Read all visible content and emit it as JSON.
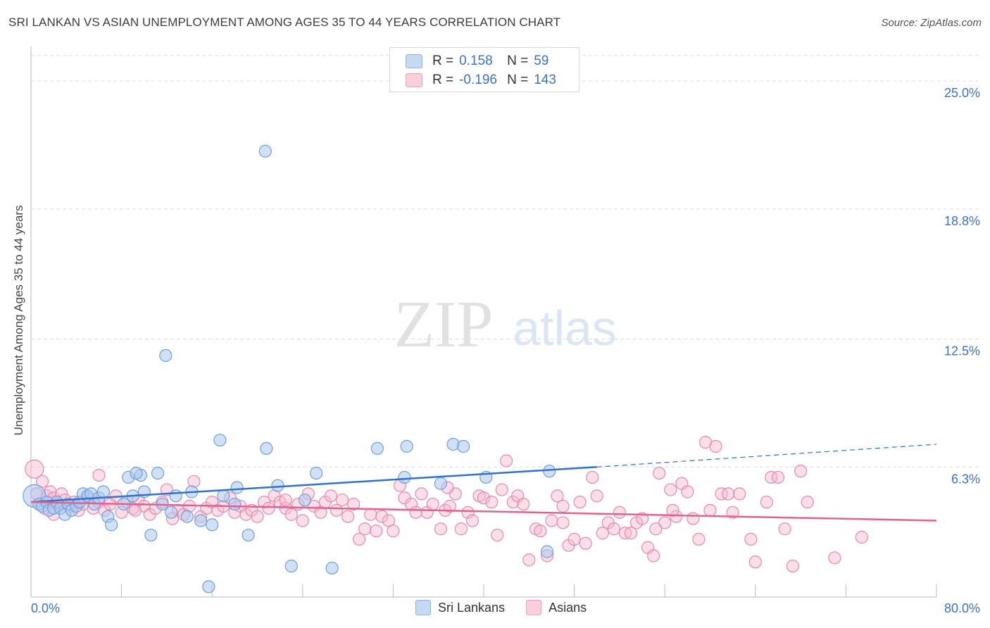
{
  "header": {
    "title": "SRI LANKAN VS ASIAN UNEMPLOYMENT AMONG AGES 35 TO 44 YEARS CORRELATION CHART",
    "source": "Source: ZipAtlas.com"
  },
  "watermark": {
    "zip": "ZIP",
    "atlas": "atlas"
  },
  "legend": {
    "rows": [
      {
        "r_label": "R =",
        "r_value": "0.158",
        "n_label": "N =",
        "n_value": "59"
      },
      {
        "r_label": "R =",
        "r_value": "-0.196",
        "n_label": "N =",
        "n_value": "143"
      }
    ]
  },
  "bottom_legend": {
    "items": [
      "Sri Lankans",
      "Asians"
    ]
  },
  "colors": {
    "blue_fill": "#a9c8f0",
    "blue_stroke": "#6f9fdc",
    "blue_line": "#2f72d0",
    "pink_fill": "#f6b8cb",
    "pink_stroke": "#e889a8",
    "pink_line": "#e2628f",
    "tick_label": "#3a73c8",
    "grid": "#dcdcdc"
  },
  "chart_data": {
    "type": "scatter",
    "title": "SRI LANKAN VS ASIAN UNEMPLOYMENT AMONG AGES 35 TO 44 YEARS CORRELATION CHART",
    "xlabel": "",
    "ylabel": "Unemployment Among Ages 35 to 44 years",
    "xlim": [
      0,
      80
    ],
    "ylim": [
      0,
      26.4
    ],
    "x_tick_labels": [
      "0.0%",
      "80.0%"
    ],
    "y_ticks": [
      6.3,
      12.5,
      18.8,
      25.0
    ],
    "y_tick_labels": [
      "6.3%",
      "12.5%",
      "18.8%",
      "25.0%"
    ],
    "grid": true,
    "legend_position": "top-center",
    "series": [
      {
        "name": "Sri Lankans",
        "r": 0.158,
        "n": 59,
        "trend": {
          "x": [
            0,
            50
          ],
          "y": [
            4.6,
            6.3
          ],
          "dashed_to": [
            80,
            7.4
          ]
        },
        "points": [
          [
            0.3,
            4.9
          ],
          [
            0.7,
            4.5
          ],
          [
            1.0,
            4.4
          ],
          [
            1.4,
            4.6
          ],
          [
            1.6,
            4.2
          ],
          [
            2.0,
            4.3
          ],
          [
            2.3,
            4.6
          ],
          [
            2.6,
            4.3
          ],
          [
            3.0,
            4.0
          ],
          [
            3.3,
            4.5
          ],
          [
            3.6,
            4.2
          ],
          [
            4.0,
            4.4
          ],
          [
            4.3,
            4.6
          ],
          [
            4.6,
            5.0
          ],
          [
            5.0,
            4.9
          ],
          [
            5.3,
            5.0
          ],
          [
            5.6,
            4.5
          ],
          [
            6.0,
            4.8
          ],
          [
            6.4,
            5.1
          ],
          [
            6.8,
            3.9
          ],
          [
            7.1,
            3.5
          ],
          [
            8.2,
            4.5
          ],
          [
            8.6,
            5.8
          ],
          [
            9.0,
            4.9
          ],
          [
            9.7,
            5.9
          ],
          [
            9.3,
            6.0
          ],
          [
            10.0,
            5.1
          ],
          [
            10.6,
            3.0
          ],
          [
            11.2,
            6.0
          ],
          [
            11.6,
            4.5
          ],
          [
            11.9,
            11.7
          ],
          [
            12.4,
            4.1
          ],
          [
            12.8,
            4.9
          ],
          [
            13.8,
            3.9
          ],
          [
            14.2,
            5.1
          ],
          [
            15.0,
            3.7
          ],
          [
            16.0,
            3.5
          ],
          [
            16.7,
            7.6
          ],
          [
            17.0,
            4.9
          ],
          [
            18.0,
            4.5
          ],
          [
            18.2,
            5.3
          ],
          [
            19.2,
            3.0
          ],
          [
            20.8,
            7.2
          ],
          [
            20.7,
            21.6
          ],
          [
            21.8,
            5.4
          ],
          [
            23.0,
            1.5
          ],
          [
            24.2,
            4.7
          ],
          [
            25.2,
            6.0
          ],
          [
            26.6,
            1.4
          ],
          [
            30.6,
            7.2
          ],
          [
            33.2,
            7.3
          ],
          [
            33.0,
            5.8
          ],
          [
            36.2,
            5.5
          ],
          [
            37.3,
            7.4
          ],
          [
            38.2,
            7.3
          ],
          [
            40.2,
            5.8
          ],
          [
            45.6,
            2.2
          ],
          [
            45.8,
            6.1
          ],
          [
            15.7,
            0.5
          ]
        ]
      },
      {
        "name": "Asians",
        "r": -0.196,
        "n": 143,
        "trend": {
          "x": [
            0,
            80
          ],
          "y": [
            4.6,
            3.7
          ]
        },
        "points": [
          [
            0.3,
            6.2
          ],
          [
            1.0,
            5.6
          ],
          [
            1.4,
            4.9
          ],
          [
            1.7,
            5.1
          ],
          [
            2.0,
            4.8
          ],
          [
            2.3,
            4.5
          ],
          [
            2.7,
            5.0
          ],
          [
            3.0,
            4.7
          ],
          [
            3.4,
            4.4
          ],
          [
            3.8,
            4.6
          ],
          [
            4.2,
            4.2
          ],
          [
            4.6,
            4.5
          ],
          [
            5.0,
            4.8
          ],
          [
            5.5,
            4.3
          ],
          [
            6.0,
            4.6
          ],
          [
            6.5,
            4.2
          ],
          [
            7.0,
            4.5
          ],
          [
            7.5,
            4.9
          ],
          [
            8.0,
            4.1
          ],
          [
            8.5,
            4.6
          ],
          [
            9.0,
            4.3
          ],
          [
            9.5,
            4.7
          ],
          [
            10.0,
            4.4
          ],
          [
            10.5,
            4.0
          ],
          [
            11.0,
            4.3
          ],
          [
            11.6,
            4.6
          ],
          [
            12.0,
            5.2
          ],
          [
            12.5,
            3.8
          ],
          [
            13.0,
            4.2
          ],
          [
            13.5,
            4.0
          ],
          [
            14.0,
            4.4
          ],
          [
            14.4,
            5.6
          ],
          [
            15.0,
            3.9
          ],
          [
            15.5,
            4.3
          ],
          [
            16.0,
            4.6
          ],
          [
            16.5,
            4.2
          ],
          [
            17.0,
            4.4
          ],
          [
            17.6,
            4.8
          ],
          [
            18.0,
            4.1
          ],
          [
            18.5,
            4.4
          ],
          [
            19.0,
            4.0
          ],
          [
            19.5,
            4.2
          ],
          [
            20.0,
            3.9
          ],
          [
            20.6,
            4.6
          ],
          [
            21.0,
            4.3
          ],
          [
            21.5,
            4.9
          ],
          [
            22.0,
            4.6
          ],
          [
            22.5,
            4.3
          ],
          [
            23.0,
            4.0
          ],
          [
            23.6,
            4.5
          ],
          [
            24.0,
            3.7
          ],
          [
            24.5,
            5.0
          ],
          [
            25.0,
            4.4
          ],
          [
            25.6,
            4.1
          ],
          [
            26.0,
            4.6
          ],
          [
            26.5,
            4.9
          ],
          [
            27.0,
            4.2
          ],
          [
            27.5,
            4.7
          ],
          [
            28.0,
            3.9
          ],
          [
            28.5,
            4.5
          ],
          [
            29.0,
            2.8
          ],
          [
            29.5,
            3.3
          ],
          [
            30.0,
            4.0
          ],
          [
            30.5,
            3.2
          ],
          [
            31.0,
            3.9
          ],
          [
            31.6,
            3.7
          ],
          [
            32.0,
            3.2
          ],
          [
            32.6,
            5.4
          ],
          [
            33.0,
            4.8
          ],
          [
            33.6,
            4.5
          ],
          [
            34.0,
            4.1
          ],
          [
            34.5,
            5.0
          ],
          [
            35.0,
            4.1
          ],
          [
            35.5,
            4.5
          ],
          [
            36.2,
            3.3
          ],
          [
            36.6,
            4.2
          ],
          [
            37.0,
            4.4
          ],
          [
            37.5,
            5.0
          ],
          [
            38.0,
            3.3
          ],
          [
            38.6,
            4.1
          ],
          [
            39.0,
            3.7
          ],
          [
            39.6,
            4.9
          ],
          [
            40.0,
            4.8
          ],
          [
            40.7,
            4.6
          ],
          [
            41.2,
            3.0
          ],
          [
            41.6,
            5.2
          ],
          [
            42.0,
            6.6
          ],
          [
            42.6,
            4.6
          ],
          [
            43.0,
            4.9
          ],
          [
            43.5,
            4.5
          ],
          [
            44.0,
            1.8
          ],
          [
            44.6,
            3.3
          ],
          [
            45.0,
            3.2
          ],
          [
            45.6,
            2.0
          ],
          [
            46.0,
            3.7
          ],
          [
            46.5,
            4.9
          ],
          [
            47.0,
            4.4
          ],
          [
            47.5,
            2.5
          ],
          [
            48.0,
            2.8
          ],
          [
            48.5,
            4.6
          ],
          [
            49.0,
            2.6
          ],
          [
            49.6,
            5.8
          ],
          [
            50.0,
            4.9
          ],
          [
            50.5,
            3.1
          ],
          [
            51.0,
            3.6
          ],
          [
            51.5,
            3.3
          ],
          [
            52.0,
            4.1
          ],
          [
            52.5,
            3.1
          ],
          [
            53.0,
            3.1
          ],
          [
            53.5,
            3.6
          ],
          [
            54.0,
            3.8
          ],
          [
            54.5,
            2.4
          ],
          [
            55.0,
            2.0
          ],
          [
            55.5,
            6.0
          ],
          [
            56.0,
            3.6
          ],
          [
            56.5,
            5.2
          ],
          [
            57.0,
            3.9
          ],
          [
            57.5,
            5.5
          ],
          [
            58.0,
            5.1
          ],
          [
            58.5,
            3.8
          ],
          [
            59.0,
            2.8
          ],
          [
            59.6,
            7.5
          ],
          [
            60.0,
            4.2
          ],
          [
            60.5,
            7.3
          ],
          [
            61.0,
            5.0
          ],
          [
            61.6,
            5.0
          ],
          [
            62.0,
            4.1
          ],
          [
            62.6,
            5.0
          ],
          [
            63.6,
            2.8
          ],
          [
            64.0,
            1.7
          ],
          [
            65.0,
            4.6
          ],
          [
            65.4,
            5.8
          ],
          [
            66.0,
            5.8
          ],
          [
            66.6,
            3.3
          ],
          [
            67.3,
            1.5
          ],
          [
            68.0,
            6.1
          ],
          [
            68.6,
            4.6
          ],
          [
            71.0,
            1.9
          ],
          [
            73.4,
            2.9
          ],
          [
            47.0,
            3.6
          ],
          [
            0.5,
            5.0
          ],
          [
            1.2,
            4.3
          ],
          [
            2.0,
            4.0
          ],
          [
            55.2,
            3.3
          ],
          [
            36.8,
            5.3
          ],
          [
            6.0,
            5.9
          ],
          [
            22.5,
            4.7
          ],
          [
            9.2,
            4.2
          ],
          [
            56.7,
            4.2
          ]
        ]
      }
    ]
  }
}
